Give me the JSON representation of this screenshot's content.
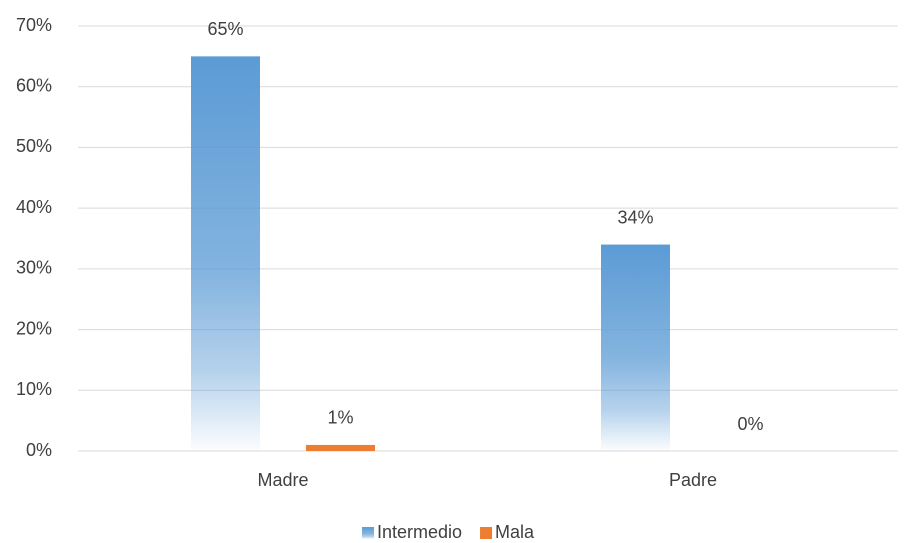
{
  "chart_data": {
    "type": "bar",
    "categories": [
      "Madre",
      "Padre"
    ],
    "series": [
      {
        "name": "Intermedio",
        "color": "#5b9bd5",
        "values": [
          65,
          34
        ],
        "value_labels": [
          "65%",
          "34%"
        ]
      },
      {
        "name": "Mala",
        "color": "#ed7d31",
        "values": [
          1,
          0
        ],
        "value_labels": [
          "1%",
          "0%"
        ]
      }
    ],
    "ylim": [
      0,
      70
    ],
    "yticks": [
      {
        "value": 0,
        "label": "0%"
      },
      {
        "value": 10,
        "label": "10%"
      },
      {
        "value": 20,
        "label": "20%"
      },
      {
        "value": 30,
        "label": "30%"
      },
      {
        "value": 40,
        "label": "40%"
      },
      {
        "value": 50,
        "label": "50%"
      },
      {
        "value": 60,
        "label": "60%"
      },
      {
        "value": 70,
        "label": "70%"
      }
    ],
    "grid": true,
    "legend": "bottom"
  }
}
